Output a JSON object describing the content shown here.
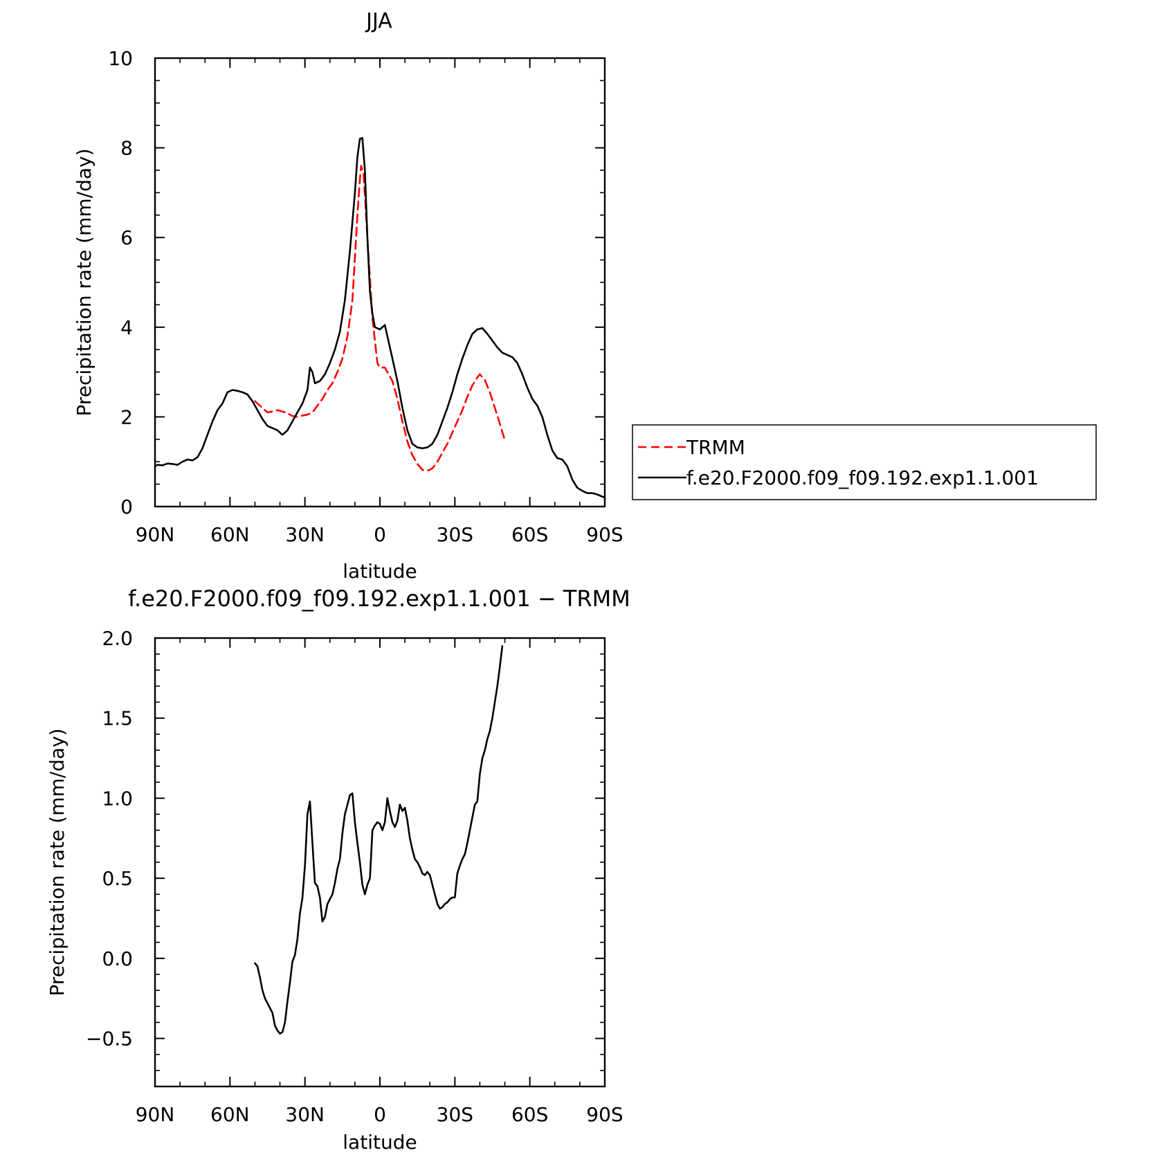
{
  "chart_data": [
    {
      "type": "line",
      "title": "JJA",
      "xlabel": "latitude",
      "ylabel": "Precipitation rate (mm/day)",
      "xlim": [
        90,
        -90
      ],
      "ylim": [
        0,
        10
      ],
      "x_ticks": [
        {
          "value": 90,
          "label": "90N"
        },
        {
          "value": 60,
          "label": "60N"
        },
        {
          "value": 30,
          "label": "30N"
        },
        {
          "value": 0,
          "label": "0"
        },
        {
          "value": -30,
          "label": "30S"
        },
        {
          "value": -60,
          "label": "60S"
        },
        {
          "value": -90,
          "label": "90S"
        }
      ],
      "y_ticks": [
        {
          "value": 0,
          "label": "0"
        },
        {
          "value": 2,
          "label": "2"
        },
        {
          "value": 4,
          "label": "4"
        },
        {
          "value": 6,
          "label": "6"
        },
        {
          "value": 8,
          "label": "8"
        },
        {
          "value": 10,
          "label": "10"
        }
      ],
      "grid": false,
      "legend_position": "right",
      "series": [
        {
          "name": "TRMM",
          "color": "#ff0000",
          "dash": true,
          "points": [
            [
              50,
              2.35
            ],
            [
              47,
              2.2
            ],
            [
              45,
              2.1
            ],
            [
              43,
              2.12
            ],
            [
              41,
              2.15
            ],
            [
              39,
              2.12
            ],
            [
              37,
              2.08
            ],
            [
              35,
              2.02
            ],
            [
              33,
              2.0
            ],
            [
              31,
              2.03
            ],
            [
              29,
              2.05
            ],
            [
              27,
              2.1
            ],
            [
              25,
              2.25
            ],
            [
              23,
              2.4
            ],
            [
              21,
              2.6
            ],
            [
              19,
              2.75
            ],
            [
              17,
              3.0
            ],
            [
              15,
              3.3
            ],
            [
              13,
              3.8
            ],
            [
              11,
              4.6
            ],
            [
              9,
              6.5
            ],
            [
              8,
              7.3
            ],
            [
              7.5,
              7.6
            ],
            [
              6.5,
              7.4
            ],
            [
              5,
              6.0
            ],
            [
              3,
              4.2
            ],
            [
              1,
              3.2
            ],
            [
              0,
              3.1
            ],
            [
              -2,
              3.1
            ],
            [
              -3,
              3.0
            ],
            [
              -5,
              2.8
            ],
            [
              -7,
              2.4
            ],
            [
              -9,
              1.9
            ],
            [
              -11,
              1.45
            ],
            [
              -13,
              1.15
            ],
            [
              -15,
              0.95
            ],
            [
              -17,
              0.82
            ],
            [
              -19,
              0.8
            ],
            [
              -21,
              0.85
            ],
            [
              -23,
              1.0
            ],
            [
              -25,
              1.2
            ],
            [
              -27,
              1.4
            ],
            [
              -29,
              1.65
            ],
            [
              -31,
              1.9
            ],
            [
              -33,
              2.15
            ],
            [
              -35,
              2.45
            ],
            [
              -37,
              2.7
            ],
            [
              -39,
              2.88
            ],
            [
              -40,
              2.95
            ],
            [
              -42,
              2.82
            ],
            [
              -44,
              2.55
            ],
            [
              -46,
              2.2
            ],
            [
              -48,
              1.85
            ],
            [
              -50,
              1.47
            ]
          ]
        },
        {
          "name": "f.e20.F2000.f09_f09.192.exp1.1.001",
          "color": "#000000",
          "dash": false,
          "points": [
            [
              90,
              0.9
            ],
            [
              89,
              0.93
            ],
            [
              87,
              0.92
            ],
            [
              85,
              0.96
            ],
            [
              83,
              0.95
            ],
            [
              81,
              0.93
            ],
            [
              79,
              1.0
            ],
            [
              77,
              1.05
            ],
            [
              75,
              1.03
            ],
            [
              73,
              1.1
            ],
            [
              71,
              1.3
            ],
            [
              69,
              1.6
            ],
            [
              67,
              1.9
            ],
            [
              65,
              2.15
            ],
            [
              63,
              2.3
            ],
            [
              61,
              2.55
            ],
            [
              59,
              2.6
            ],
            [
              57,
              2.58
            ],
            [
              55,
              2.55
            ],
            [
              53,
              2.5
            ],
            [
              51,
              2.35
            ],
            [
              49,
              2.15
            ],
            [
              47,
              1.95
            ],
            [
              45,
              1.8
            ],
            [
              43,
              1.75
            ],
            [
              41,
              1.7
            ],
            [
              39,
              1.6
            ],
            [
              37,
              1.7
            ],
            [
              35,
              1.9
            ],
            [
              33,
              2.1
            ],
            [
              31,
              2.3
            ],
            [
              29,
              2.6
            ],
            [
              28,
              3.1
            ],
            [
              27,
              3.0
            ],
            [
              26,
              2.75
            ],
            [
              24,
              2.8
            ],
            [
              22,
              2.95
            ],
            [
              20,
              3.2
            ],
            [
              18,
              3.5
            ],
            [
              16,
              3.9
            ],
            [
              14,
              4.6
            ],
            [
              12,
              5.7
            ],
            [
              10,
              7.0
            ],
            [
              9,
              7.8
            ],
            [
              8,
              8.2
            ],
            [
              7,
              8.22
            ],
            [
              6,
              7.5
            ],
            [
              5,
              6.0
            ],
            [
              4,
              4.8
            ],
            [
              3,
              4.3
            ],
            [
              2,
              4.0
            ],
            [
              0,
              3.95
            ],
            [
              -1,
              4.0
            ],
            [
              -2,
              4.05
            ],
            [
              -3,
              3.8
            ],
            [
              -5,
              3.3
            ],
            [
              -7,
              2.8
            ],
            [
              -9,
              2.2
            ],
            [
              -11,
              1.7
            ],
            [
              -13,
              1.4
            ],
            [
              -15,
              1.32
            ],
            [
              -17,
              1.3
            ],
            [
              -19,
              1.32
            ],
            [
              -21,
              1.4
            ],
            [
              -23,
              1.6
            ],
            [
              -25,
              1.9
            ],
            [
              -27,
              2.2
            ],
            [
              -29,
              2.55
            ],
            [
              -31,
              2.95
            ],
            [
              -33,
              3.3
            ],
            [
              -35,
              3.6
            ],
            [
              -37,
              3.85
            ],
            [
              -39,
              3.95
            ],
            [
              -41,
              3.98
            ],
            [
              -43,
              3.85
            ],
            [
              -45,
              3.7
            ],
            [
              -47,
              3.55
            ],
            [
              -49,
              3.43
            ],
            [
              -51,
              3.38
            ],
            [
              -53,
              3.33
            ],
            [
              -55,
              3.2
            ],
            [
              -57,
              2.95
            ],
            [
              -59,
              2.65
            ],
            [
              -61,
              2.4
            ],
            [
              -63,
              2.25
            ],
            [
              -65,
              2.0
            ],
            [
              -67,
              1.6
            ],
            [
              -69,
              1.25
            ],
            [
              -71,
              1.08
            ],
            [
              -73,
              1.05
            ],
            [
              -75,
              0.9
            ],
            [
              -77,
              0.6
            ],
            [
              -79,
              0.42
            ],
            [
              -81,
              0.35
            ],
            [
              -83,
              0.3
            ],
            [
              -85,
              0.3
            ],
            [
              -87,
              0.27
            ],
            [
              -89,
              0.22
            ],
            [
              -90,
              0.2
            ]
          ]
        }
      ]
    },
    {
      "type": "line",
      "title": "f.e20.F2000.f09_f09.192.exp1.1.001 − TRMM",
      "xlabel": "latitude",
      "ylabel": "Precipitation rate (mm/day)",
      "xlim": [
        90,
        -90
      ],
      "ylim": [
        -0.8,
        2.0
      ],
      "x_ticks": [
        {
          "value": 90,
          "label": "90N"
        },
        {
          "value": 60,
          "label": "60N"
        },
        {
          "value": 30,
          "label": "30N"
        },
        {
          "value": 0,
          "label": "0"
        },
        {
          "value": -30,
          "label": "30S"
        },
        {
          "value": -60,
          "label": "60S"
        },
        {
          "value": -90,
          "label": "90S"
        }
      ],
      "y_ticks": [
        {
          "value": -0.5,
          "label": "−0.5"
        },
        {
          "value": 0.0,
          "label": "0.0"
        },
        {
          "value": 0.5,
          "label": "0.5"
        },
        {
          "value": 1.0,
          "label": "1.0"
        },
        {
          "value": 1.5,
          "label": "1.5"
        },
        {
          "value": 2.0,
          "label": "2.0"
        }
      ],
      "grid": false,
      "series": [
        {
          "color": "#000000",
          "dash": false,
          "points": [
            [
              50,
              -0.03
            ],
            [
              49,
              -0.05
            ],
            [
              48,
              -0.12
            ],
            [
              47,
              -0.2
            ],
            [
              46,
              -0.25
            ],
            [
              45,
              -0.28
            ],
            [
              44,
              -0.31
            ],
            [
              43,
              -0.34
            ],
            [
              42,
              -0.42
            ],
            [
              41,
              -0.45
            ],
            [
              40,
              -0.47
            ],
            [
              39,
              -0.46
            ],
            [
              38,
              -0.4
            ],
            [
              37,
              -0.27
            ],
            [
              36,
              -0.15
            ],
            [
              35,
              -0.02
            ],
            [
              34,
              0.02
            ],
            [
              33,
              0.12
            ],
            [
              32,
              0.28
            ],
            [
              31,
              0.38
            ],
            [
              30,
              0.58
            ],
            [
              29,
              0.9
            ],
            [
              28,
              0.98
            ],
            [
              27,
              0.72
            ],
            [
              26,
              0.47
            ],
            [
              25,
              0.45
            ],
            [
              24,
              0.38
            ],
            [
              23,
              0.23
            ],
            [
              22,
              0.26
            ],
            [
              21,
              0.34
            ],
            [
              20,
              0.37
            ],
            [
              19,
              0.4
            ],
            [
              18,
              0.47
            ],
            [
              17,
              0.56
            ],
            [
              16,
              0.62
            ],
            [
              15,
              0.78
            ],
            [
              14,
              0.9
            ],
            [
              13,
              0.96
            ],
            [
              12,
              1.02
            ],
            [
              11,
              1.03
            ],
            [
              10,
              0.85
            ],
            [
              9,
              0.72
            ],
            [
              8,
              0.6
            ],
            [
              7,
              0.46
            ],
            [
              6,
              0.4
            ],
            [
              5,
              0.46
            ],
            [
              4,
              0.5
            ],
            [
              3,
              0.8
            ],
            [
              2,
              0.83
            ],
            [
              1,
              0.85
            ],
            [
              0,
              0.84
            ],
            [
              -1,
              0.8
            ],
            [
              -2,
              0.85
            ],
            [
              -3,
              1.0
            ],
            [
              -4,
              0.92
            ],
            [
              -5,
              0.85
            ],
            [
              -6,
              0.82
            ],
            [
              -7,
              0.86
            ],
            [
              -8,
              0.96
            ],
            [
              -9,
              0.92
            ],
            [
              -10,
              0.94
            ],
            [
              -11,
              0.86
            ],
            [
              -12,
              0.75
            ],
            [
              -13,
              0.68
            ],
            [
              -14,
              0.62
            ],
            [
              -15,
              0.6
            ],
            [
              -16,
              0.57
            ],
            [
              -17,
              0.53
            ],
            [
              -18,
              0.52
            ],
            [
              -19,
              0.54
            ],
            [
              -20,
              0.52
            ],
            [
              -21,
              0.46
            ],
            [
              -22,
              0.4
            ],
            [
              -23,
              0.34
            ],
            [
              -24,
              0.31
            ],
            [
              -25,
              0.32
            ],
            [
              -26,
              0.34
            ],
            [
              -27,
              0.35
            ],
            [
              -28,
              0.37
            ],
            [
              -29,
              0.38
            ],
            [
              -30,
              0.38
            ],
            [
              -31,
              0.53
            ],
            [
              -32,
              0.58
            ],
            [
              -33,
              0.62
            ],
            [
              -34,
              0.65
            ],
            [
              -35,
              0.72
            ],
            [
              -36,
              0.8
            ],
            [
              -37,
              0.88
            ],
            [
              -38,
              0.96
            ],
            [
              -39,
              0.98
            ],
            [
              -40,
              1.15
            ],
            [
              -41,
              1.25
            ],
            [
              -42,
              1.3
            ],
            [
              -43,
              1.37
            ],
            [
              -44,
              1.42
            ],
            [
              -45,
              1.5
            ],
            [
              -46,
              1.6
            ],
            [
              -47,
              1.7
            ],
            [
              -48,
              1.82
            ],
            [
              -49,
              1.95
            ]
          ]
        }
      ]
    }
  ]
}
